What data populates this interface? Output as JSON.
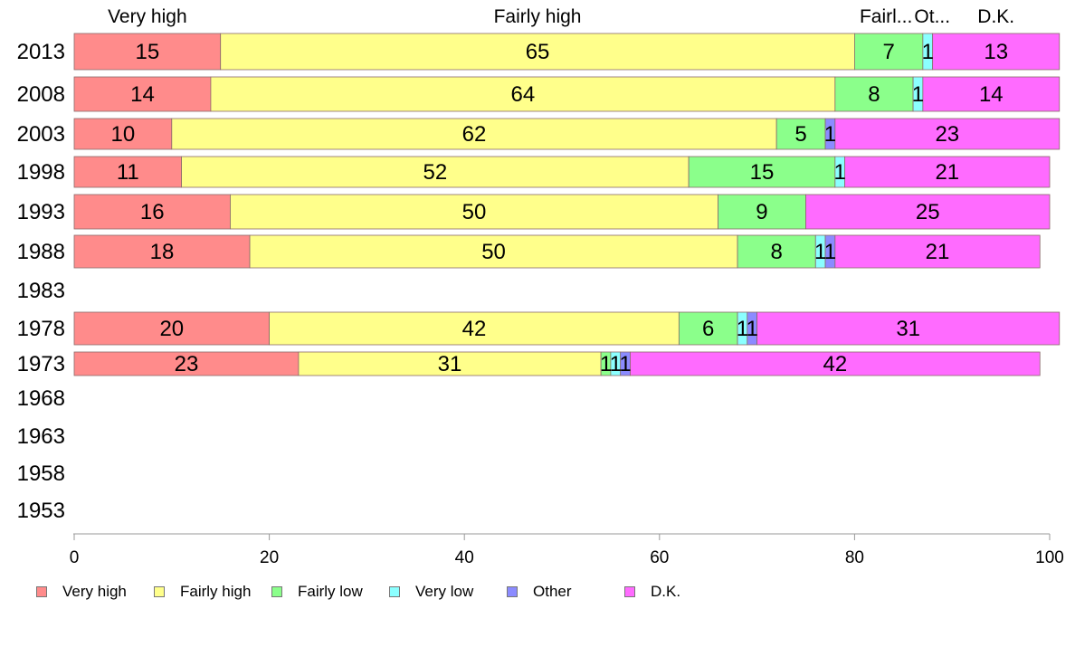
{
  "chart_data": {
    "type": "bar",
    "orientation": "horizontal",
    "stacked": true,
    "categories": [
      "2013",
      "2008",
      "2003",
      "1998",
      "1993",
      "1988",
      "1983",
      "1978",
      "1973",
      "1968",
      "1963",
      "1958",
      "1953"
    ],
    "series": [
      {
        "name": "Very high",
        "color": "#ff8b8b",
        "values": [
          15,
          14,
          10,
          11,
          16,
          18,
          null,
          20,
          23,
          null,
          null,
          null,
          null
        ]
      },
      {
        "name": "Fairly high",
        "color": "#ffff8b",
        "values": [
          65,
          64,
          62,
          52,
          50,
          50,
          null,
          42,
          31,
          null,
          null,
          null,
          null
        ]
      },
      {
        "name": "Fairly low",
        "color": "#8bff8b",
        "values": [
          7,
          8,
          5,
          15,
          9,
          8,
          null,
          6,
          1,
          null,
          null,
          null,
          null
        ]
      },
      {
        "name": "Very low",
        "color": "#8bffff",
        "values": [
          1,
          1,
          0,
          1,
          0,
          1,
          null,
          1,
          1,
          null,
          null,
          null,
          null
        ]
      },
      {
        "name": "Other",
        "color": "#8b8bff",
        "values": [
          0,
          0,
          1,
          0,
          0,
          1,
          null,
          1,
          1,
          null,
          null,
          null,
          null
        ]
      },
      {
        "name": "D.K.",
        "color": "#ff6bff",
        "values": [
          13,
          14,
          23,
          21,
          25,
          21,
          null,
          31,
          42,
          null,
          null,
          null,
          null
        ]
      }
    ],
    "top_labels": [
      "Very high",
      "Fairly high",
      "Fairl...",
      "Ot...",
      "D.K."
    ],
    "xlim": [
      0,
      100
    ],
    "xticks": [
      "0",
      "20",
      "40",
      "60",
      "80",
      "100"
    ],
    "title": "",
    "xlabel": "",
    "ylabel": "",
    "grid": false,
    "legend_position": "bottom"
  }
}
